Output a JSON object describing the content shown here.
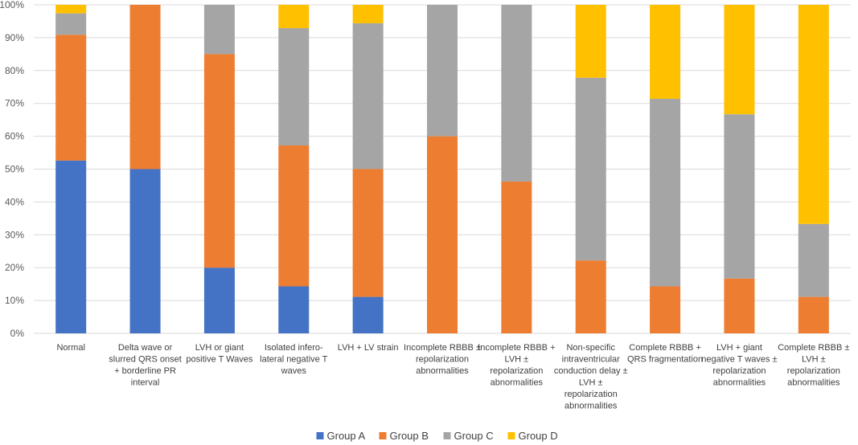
{
  "chart_data": {
    "type": "bar",
    "stacked": true,
    "percent": true,
    "title": "",
    "xlabel": "",
    "ylabel": "",
    "ylim": [
      0,
      100
    ],
    "y_ticks": [
      "0%",
      "10%",
      "20%",
      "30%",
      "40%",
      "50%",
      "60%",
      "70%",
      "80%",
      "90%",
      "100%"
    ],
    "grid": true,
    "legend_position": "bottom",
    "categories": [
      [
        "Normal"
      ],
      [
        "Delta wave or",
        "slurred QRS onset",
        "+ borderline PR",
        "interval"
      ],
      [
        "LVH or giant",
        "positive T Waves"
      ],
      [
        "Isolated infero-",
        "lateral negative T",
        "waves"
      ],
      [
        "LVH + LV strain"
      ],
      [
        "Incomplete RBBB ±",
        "repolarization",
        "abnormalities"
      ],
      [
        "Incomplete RBBB +",
        "LVH ±",
        "repolarization",
        "abnormalities"
      ],
      [
        "Non-specific",
        "intraventricular",
        "conduction delay ±",
        "LVH ±",
        "repolarization",
        "abnormalities"
      ],
      [
        "Complete RBBB +",
        "QRS fragmentation"
      ],
      [
        "LVH + giant",
        "negative T waves ±",
        "repolarization",
        "abnormalities"
      ],
      [
        "Complete RBBB ±",
        "LVH ±",
        "repolarization",
        "abnormalities"
      ]
    ],
    "series": [
      {
        "name": "Group A",
        "color": "#4472c4",
        "values": [
          52.6,
          50,
          20,
          14.3,
          11.1,
          0,
          0,
          0,
          0,
          0,
          0
        ]
      },
      {
        "name": "Group B",
        "color": "#ed7d31",
        "values": [
          38.3,
          50,
          65,
          42.9,
          38.9,
          60,
          46.2,
          22.2,
          14.3,
          16.7,
          11.1
        ]
      },
      {
        "name": "Group C",
        "color": "#a5a5a5",
        "values": [
          6.5,
          0,
          15,
          35.7,
          44.4,
          40,
          53.8,
          55.6,
          57.1,
          50,
          22.2
        ]
      },
      {
        "name": "Group D",
        "color": "#ffc000",
        "values": [
          2.6,
          0,
          0,
          7.1,
          5.6,
          0,
          0,
          22.2,
          28.6,
          33.3,
          66.7
        ]
      }
    ]
  }
}
